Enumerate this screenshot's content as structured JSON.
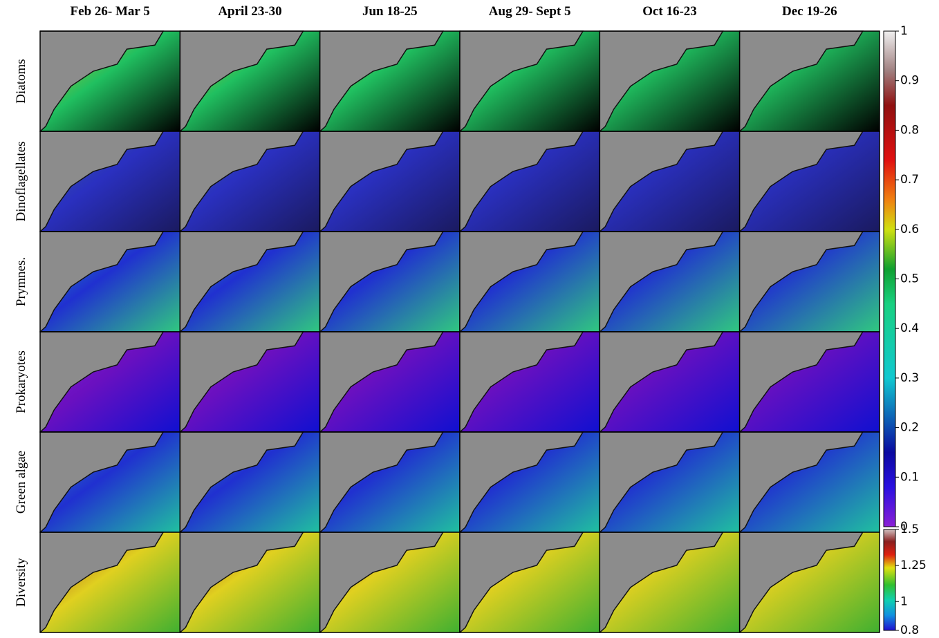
{
  "columns": [
    "Feb 26- Mar 5",
    "April 23-30",
    "Jun 18-25",
    "Aug 29- Sept 5",
    "Oct 16-23",
    "Dec 19-26"
  ],
  "rows": [
    "Diatoms",
    "Dinoflagellates",
    "Prymnes.",
    "Prokaryotes",
    "Green algae",
    "Diversity"
  ],
  "colorbar_fraction": {
    "lim": [
      0,
      1
    ],
    "ticks": [
      0,
      0.1,
      0.2,
      0.3,
      0.4,
      0.5,
      0.6,
      0.7,
      0.8,
      0.9,
      1
    ]
  },
  "colorbar_diversity": {
    "lim": [
      0.8,
      1.5
    ],
    "ticks": [
      0.8,
      1,
      1.25,
      1.5
    ]
  }
}
